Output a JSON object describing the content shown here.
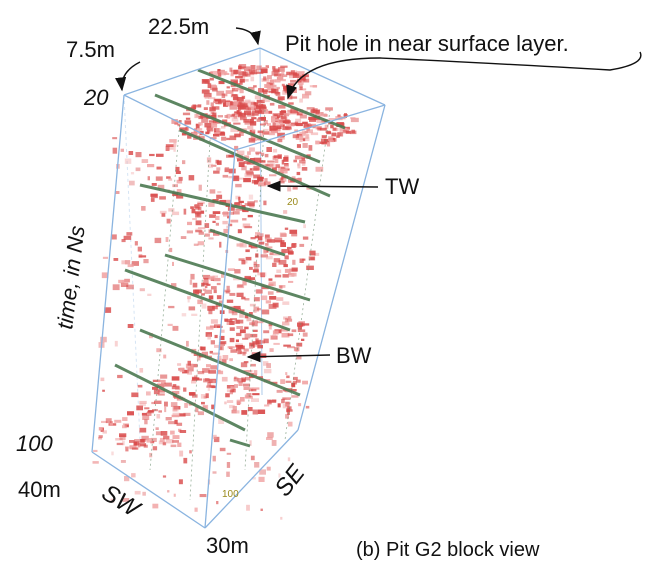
{
  "labels": {
    "top_left_distance": "7.5m",
    "top_right_distance": "22.5m",
    "pit_hole_annotation": "Pit hole in near surface layer.",
    "time_start": "20",
    "time_axis_label": "time, in Ns",
    "time_end": "100",
    "tw_label": "TW",
    "bw_label": "BW",
    "sw_distance": "40m",
    "sw_label": "SW",
    "se_label": "SE",
    "se_distance": "30m",
    "caption": "(b)  Pit G2 block view",
    "inner_tick_20": "20",
    "inner_tick_100": "100"
  },
  "colors": {
    "box_edge": "#8ab4e0",
    "reflection": "#d94a4a",
    "reflection_light": "#f0a0a0",
    "grid_line": "#4c7a52",
    "arrow": "#111111"
  }
}
